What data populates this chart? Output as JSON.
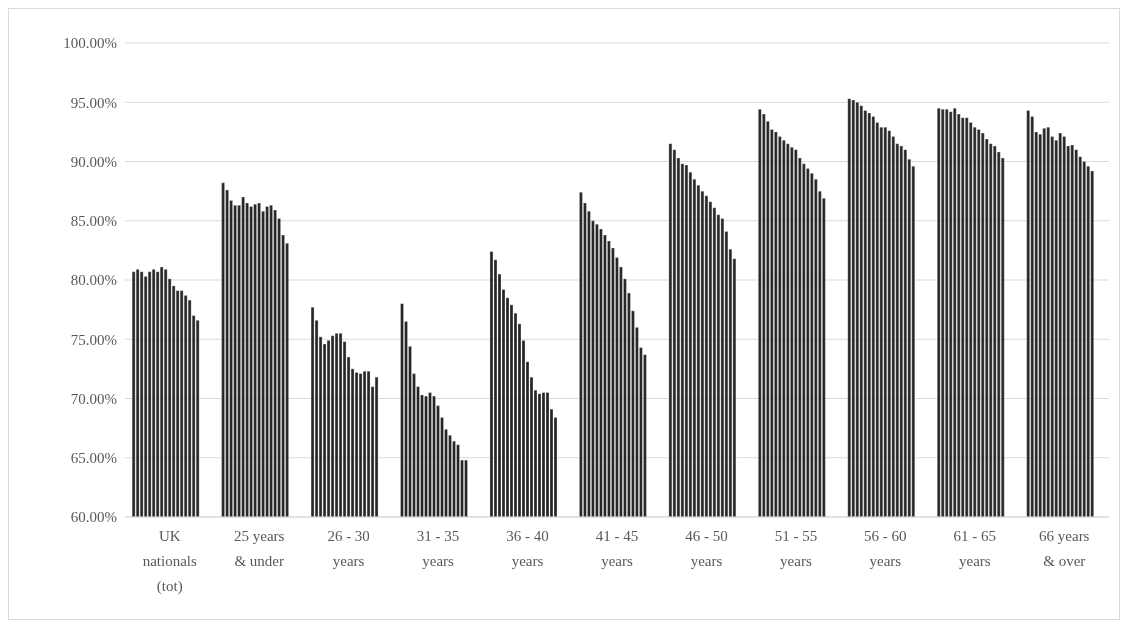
{
  "chart_data": {
    "type": "bar",
    "categories": [
      "UK nationals (tot)",
      "25 years & under",
      "26 - 30 years",
      "31 - 35 years",
      "36 - 40 years",
      "41 - 45 years",
      "46 - 50 years",
      "51 - 55 years",
      "56 - 60 years",
      "61 - 65 years",
      "66 years & over"
    ],
    "series": [
      {
        "color": "#262626",
        "values": [
          80.7,
          88.2,
          77.7,
          78.0,
          82.4,
          87.4,
          91.5,
          94.4,
          95.3,
          94.5,
          94.3
        ]
      },
      {
        "color": "#262626",
        "values": [
          80.9,
          87.6,
          76.6,
          76.5,
          81.7,
          86.5,
          91.0,
          94.0,
          95.2,
          94.4,
          93.8
        ]
      },
      {
        "color": "#262626",
        "values": [
          80.7,
          86.7,
          75.2,
          74.4,
          80.5,
          85.8,
          90.3,
          93.4,
          95.0,
          94.4,
          92.5
        ]
      },
      {
        "color": "#262626",
        "values": [
          80.3,
          86.3,
          74.6,
          72.1,
          79.2,
          85.0,
          89.8,
          92.7,
          94.7,
          94.2,
          92.3
        ]
      },
      {
        "color": "#262626",
        "values": [
          80.7,
          86.3,
          74.9,
          71.0,
          78.5,
          84.7,
          89.7,
          92.5,
          94.3,
          94.5,
          92.8
        ]
      },
      {
        "color": "#262626",
        "values": [
          80.9,
          87.0,
          75.3,
          70.3,
          77.9,
          84.3,
          89.1,
          92.1,
          94.1,
          94.0,
          92.9
        ]
      },
      {
        "color": "#262626",
        "values": [
          80.7,
          86.5,
          75.5,
          70.2,
          77.2,
          83.8,
          88.5,
          91.8,
          93.8,
          93.7,
          92.1
        ]
      },
      {
        "color": "#262626",
        "values": [
          81.1,
          86.2,
          75.5,
          70.5,
          76.3,
          83.3,
          88.0,
          91.5,
          93.3,
          93.7,
          91.8
        ]
      },
      {
        "color": "#262626",
        "values": [
          80.9,
          86.4,
          74.8,
          70.2,
          74.9,
          82.7,
          87.5,
          91.2,
          92.9,
          93.3,
          92.4
        ]
      },
      {
        "color": "#262626",
        "values": [
          80.1,
          86.5,
          73.5,
          69.4,
          73.1,
          81.9,
          87.1,
          91.0,
          92.9,
          92.9,
          92.1
        ]
      },
      {
        "color": "#262626",
        "values": [
          79.5,
          85.8,
          72.5,
          68.4,
          71.8,
          81.1,
          86.6,
          90.3,
          92.6,
          92.7,
          91.3
        ]
      },
      {
        "color": "#262626",
        "values": [
          79.1,
          86.2,
          72.2,
          67.4,
          70.7,
          80.1,
          86.1,
          89.8,
          92.1,
          92.4,
          91.4
        ]
      },
      {
        "color": "#262626",
        "values": [
          79.1,
          86.3,
          72.1,
          66.9,
          70.4,
          78.9,
          85.5,
          89.4,
          91.5,
          91.9,
          91.0
        ]
      },
      {
        "color": "#262626",
        "values": [
          78.7,
          85.9,
          72.3,
          66.4,
          70.5,
          77.4,
          85.2,
          89.0,
          91.3,
          91.5,
          90.4
        ]
      },
      {
        "color": "#262626",
        "values": [
          78.3,
          85.2,
          72.3,
          66.1,
          70.5,
          76.0,
          84.1,
          88.5,
          91.0,
          91.3,
          90.0
        ]
      },
      {
        "color": "#262626",
        "values": [
          77.0,
          83.8,
          71.0,
          64.8,
          69.1,
          74.3,
          82.6,
          87.5,
          90.2,
          90.8,
          89.6
        ]
      },
      {
        "color": "#262626",
        "values": [
          76.6,
          83.1,
          71.8,
          64.8,
          68.4,
          73.7,
          81.8,
          86.9,
          89.6,
          90.3,
          89.2
        ]
      }
    ],
    "ylim": [
      60,
      100
    ],
    "yticks": [
      {
        "value": 60,
        "label": "60.00%"
      },
      {
        "value": 65,
        "label": "65.00%"
      },
      {
        "value": 70,
        "label": "70.00%"
      },
      {
        "value": 75,
        "label": "75.00%"
      },
      {
        "value": 80,
        "label": "80.00%"
      },
      {
        "value": 85,
        "label": "85.00%"
      },
      {
        "value": 90,
        "label": "90.00%"
      },
      {
        "value": 95,
        "label": "95.00%"
      },
      {
        "value": 100,
        "label": "100.00%"
      }
    ],
    "grid": "y",
    "legend": false
  }
}
